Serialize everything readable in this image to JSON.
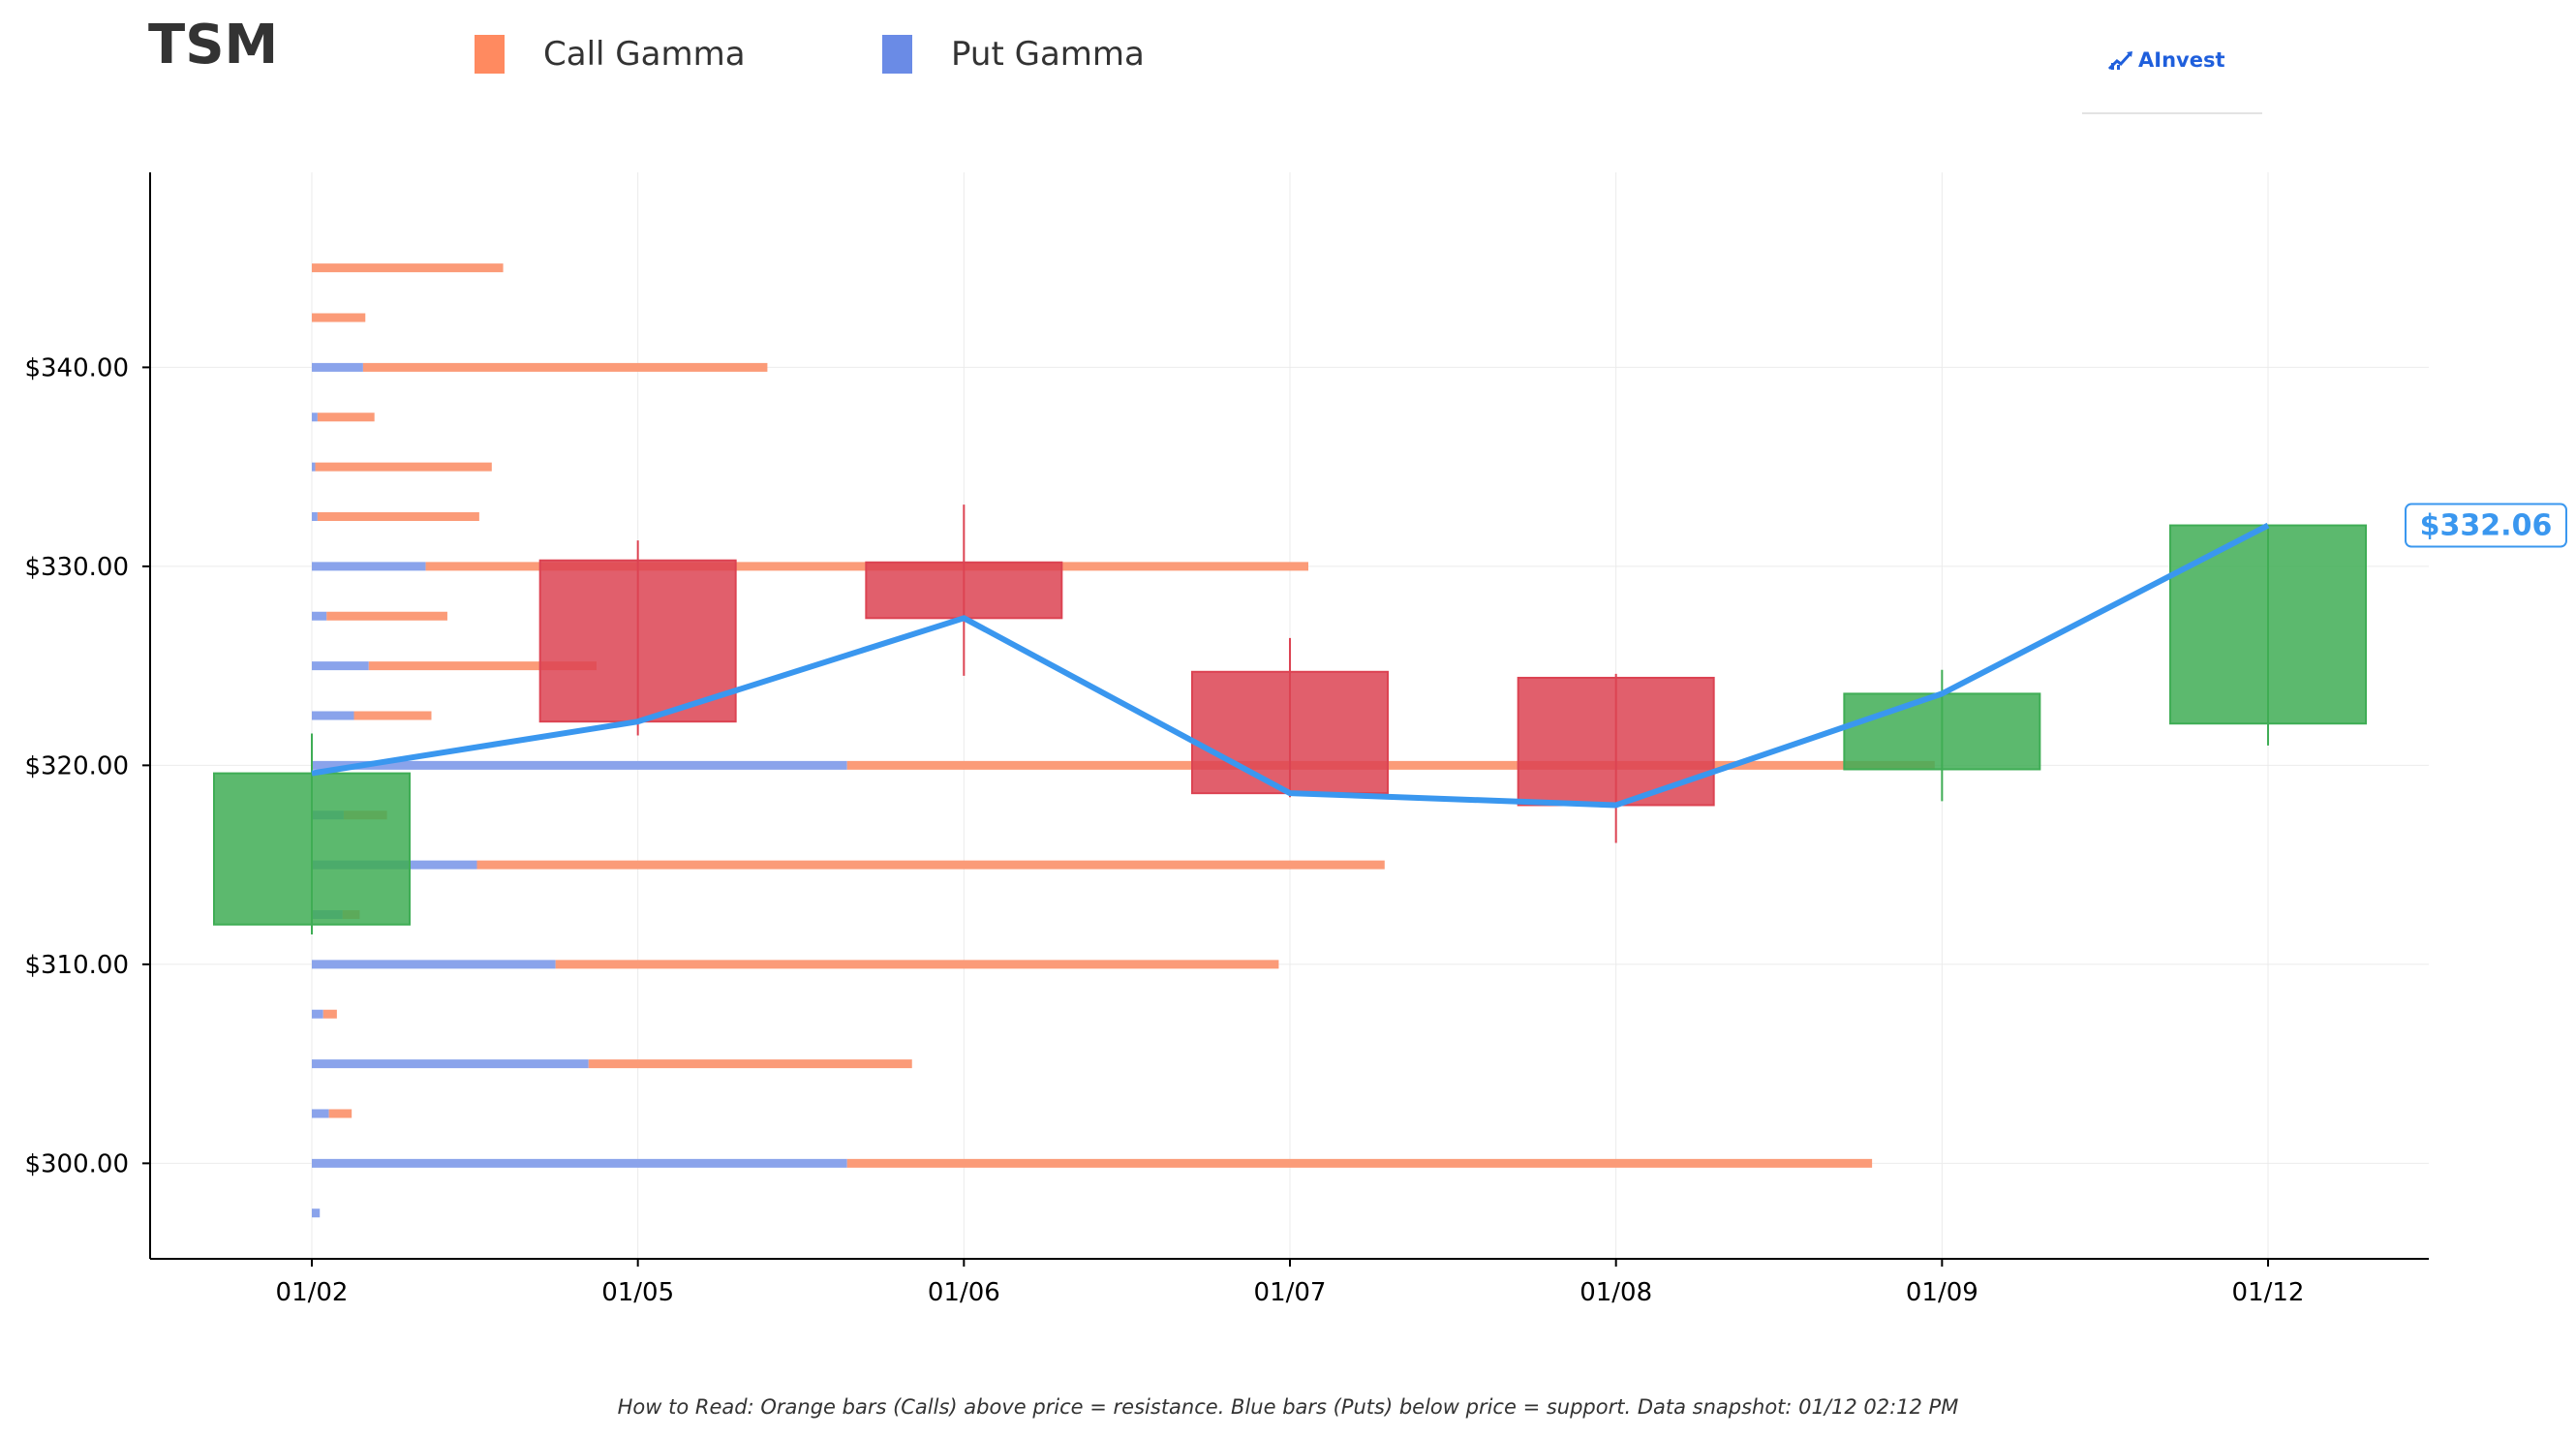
{
  "header": {
    "ticker": "TSM",
    "brand_name": "AInvest",
    "legend": [
      {
        "label": "Call Gamma",
        "color": "#ff8a60"
      },
      {
        "label": "Put Gamma",
        "color": "#6a8be6"
      }
    ]
  },
  "footnote": "How to Read: Orange bars (Calls) above price = resistance. Blue bars (Puts) below price = support. Data snapshot: 01/12 02:12 PM",
  "colors": {
    "call": "#fb9b78",
    "put": "#8aa3eb",
    "up_candle": "#3fad55",
    "down_candle": "#dc4352",
    "price_line": "#3a97ef",
    "axis": "#000000",
    "grid": "#ebebeb"
  },
  "chart_data": {
    "type": "candlestick",
    "dates": [
      "01/02",
      "01/05",
      "01/06",
      "01/07",
      "01/08",
      "01/09",
      "01/12"
    ],
    "ohlc": [
      {
        "date": "01/02",
        "open": 312.0,
        "high": 321.6,
        "low": 311.5,
        "close": 319.6
      },
      {
        "date": "01/05",
        "open": 330.3,
        "high": 331.3,
        "low": 321.5,
        "close": 322.2
      },
      {
        "date": "01/06",
        "open": 330.2,
        "high": 333.1,
        "low": 324.5,
        "close": 327.4
      },
      {
        "date": "01/07",
        "open": 324.7,
        "high": 326.4,
        "low": 318.4,
        "close": 318.6
      },
      {
        "date": "01/08",
        "open": 324.4,
        "high": 324.6,
        "low": 316.1,
        "close": 318.0
      },
      {
        "date": "01/09",
        "open": 319.8,
        "high": 324.8,
        "low": 318.2,
        "close": 323.6
      },
      {
        "date": "01/12",
        "open": 322.1,
        "high": 332.1,
        "low": 321.0,
        "close": 332.06
      }
    ],
    "price_line": {
      "name": "Close",
      "values": [
        319.6,
        322.2,
        327.4,
        318.6,
        318.0,
        323.6,
        332.06
      ]
    },
    "current_price_label": "$332.06",
    "gamma_strikes": [
      345,
      342.5,
      340,
      337.5,
      335,
      332.5,
      330,
      327.5,
      325,
      322.5,
      320,
      317.5,
      315,
      312.5,
      310,
      307.5,
      305,
      302.5,
      300,
      297.5
    ],
    "put_gamma": [
      0,
      0,
      0.045,
      0.005,
      0.003,
      0.005,
      0.1,
      0.013,
      0.05,
      0.037,
      0.47,
      0.028,
      0.145,
      0.027,
      0.214,
      0.01,
      0.243,
      0.015,
      0.47,
      0.007
    ],
    "call_gamma": [
      0.168,
      0.047,
      0.355,
      0.05,
      0.155,
      0.142,
      0.775,
      0.106,
      0.2,
      0.068,
      0.955,
      0.038,
      0.797,
      0.015,
      0.635,
      0.012,
      0.284,
      0.02,
      0.9,
      0
    ],
    "ylim": [
      295.2,
      349.8
    ],
    "y_ticks": [
      300,
      310,
      320,
      330,
      340
    ],
    "y_tick_labels": [
      "$300.00",
      "$310.00",
      "$320.00",
      "$330.00",
      "$340.00"
    ],
    "xlabel": "",
    "ylabel": "",
    "grid": true,
    "legend_position": "top"
  }
}
